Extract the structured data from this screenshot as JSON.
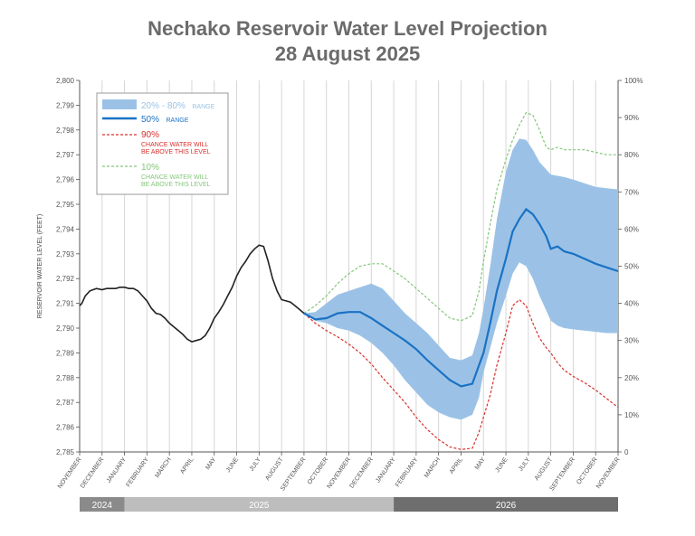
{
  "title_line1": "Nechako Reservoir Water Level Projection",
  "title_line2": "28 August 2025",
  "chart_data": {
    "type": "line",
    "ylabel": "RESERVOIR WATER LEVEL (FEET)",
    "ylim": [
      2785,
      2800
    ],
    "y_ticks": [
      "2,785",
      "2,786",
      "2,787",
      "2,788",
      "2,789",
      "2,790",
      "2,791",
      "2,792",
      "2,793",
      "2,794",
      "2,795",
      "2,796",
      "2,797",
      "2,798",
      "2,799",
      "2,800"
    ],
    "y2_ticks": [
      "0",
      "10%",
      "20%",
      "30%",
      "40%",
      "50%",
      "60%",
      "70%",
      "80%",
      "90%",
      "100%"
    ],
    "x_ticks": [
      "NOVEMBER",
      "DECEMBER",
      "JANUARY",
      "FEBRUARY",
      "MARCH",
      "APRIL",
      "MAY",
      "JUNE",
      "JULY",
      "AUGUST",
      "SEPTEMBER",
      "OCTOBER",
      "NOVEMBER",
      "DECEMBER",
      "JANUARY",
      "FEBRUARY",
      "MARCH",
      "APRIL",
      "MAY",
      "JUNE",
      "JULY",
      "AUGUST",
      "SEPTEMBER",
      "OCTOBER",
      "NOVEMBER"
    ],
    "years": [
      {
        "label": "2024",
        "start": 0,
        "end": 2,
        "color": "#8a8a8a"
      },
      {
        "label": "2025",
        "start": 2,
        "end": 14,
        "color": "#bdbdbd"
      },
      {
        "label": "2026",
        "start": 14,
        "end": 24,
        "color": "#6e6e6e"
      }
    ],
    "colors": {
      "historical": "#222222",
      "median": "#1a72c4",
      "band": "#9bc2e6",
      "p90": "#d9302c",
      "p10": "#84c77a"
    },
    "historical": {
      "x": [
        0,
        0.1,
        0.25,
        0.45,
        0.6,
        0.75,
        1.0,
        1.2,
        1.4,
        1.6,
        1.8,
        2.0,
        2.2,
        2.4,
        2.6,
        2.8,
        3.0,
        3.2,
        3.4,
        3.6,
        3.8,
        4.0,
        4.2,
        4.4,
        4.6,
        4.8,
        5.0,
        5.2,
        5.4,
        5.6,
        5.8,
        6.0,
        6.2,
        6.4,
        6.6,
        6.8,
        7.0,
        7.2,
        7.4,
        7.6,
        7.8,
        8.0,
        8.2,
        8.4,
        8.6,
        8.8,
        9.0,
        9.2,
        9.4,
        9.6,
        9.8,
        10.0
      ],
      "y": [
        2790.9,
        2791.0,
        2791.3,
        2791.5,
        2791.55,
        2791.6,
        2791.55,
        2791.6,
        2791.6,
        2791.6,
        2791.65,
        2791.65,
        2791.6,
        2791.6,
        2791.5,
        2791.3,
        2791.1,
        2790.8,
        2790.6,
        2790.55,
        2790.4,
        2790.2,
        2790.05,
        2789.9,
        2789.75,
        2789.55,
        2789.45,
        2789.5,
        2789.55,
        2789.7,
        2790.0,
        2790.4,
        2790.65,
        2790.95,
        2791.3,
        2791.65,
        2792.1,
        2792.45,
        2792.7,
        2793.0,
        2793.2,
        2793.35,
        2793.3,
        2792.7,
        2792.0,
        2791.5,
        2791.15,
        2791.1,
        2791.05,
        2790.9,
        2790.75,
        2790.6
      ]
    },
    "forecast_x": [
      10.0,
      10.5,
      11.0,
      11.5,
      12.0,
      12.5,
      13.0,
      13.5,
      14.0,
      14.5,
      15.0,
      15.5,
      16.0,
      16.5,
      17.0,
      17.5,
      17.8,
      18.0,
      18.3,
      18.6,
      19.0,
      19.3,
      19.6,
      19.9,
      20.2,
      20.5,
      20.8,
      21.0,
      21.3,
      21.6,
      22.0,
      22.5,
      23.0,
      23.5,
      24.0
    ],
    "series": [
      {
        "name": "50% RANGE",
        "y": [
          2790.6,
          2790.35,
          2790.4,
          2790.6,
          2790.65,
          2790.65,
          2790.4,
          2790.1,
          2789.8,
          2789.5,
          2789.15,
          2788.7,
          2788.3,
          2787.9,
          2787.65,
          2787.75,
          2788.5,
          2789.0,
          2790.2,
          2791.5,
          2792.8,
          2793.9,
          2794.4,
          2794.8,
          2794.6,
          2794.2,
          2793.7,
          2793.2,
          2793.3,
          2793.1,
          2793.0,
          2792.8,
          2792.6,
          2792.45,
          2792.3
        ]
      },
      {
        "name": "20% - 80% RANGE upper",
        "y": [
          2790.6,
          2790.65,
          2791.0,
          2791.35,
          2791.5,
          2791.65,
          2791.8,
          2791.6,
          2791.1,
          2790.6,
          2790.2,
          2789.8,
          2789.3,
          2788.8,
          2788.7,
          2788.9,
          2789.8,
          2790.8,
          2792.5,
          2794.4,
          2796.3,
          2797.2,
          2797.65,
          2797.6,
          2797.2,
          2796.7,
          2796.4,
          2796.2,
          2796.15,
          2796.1,
          2796.0,
          2795.85,
          2795.7,
          2795.65,
          2795.6
        ]
      },
      {
        "name": "20% - 80% RANGE lower",
        "y": [
          2790.6,
          2790.3,
          2790.2,
          2790.0,
          2789.9,
          2789.7,
          2789.4,
          2789.0,
          2788.5,
          2787.9,
          2787.4,
          2786.9,
          2786.6,
          2786.4,
          2786.3,
          2786.5,
          2787.2,
          2788.2,
          2789.2,
          2790.2,
          2791.3,
          2792.2,
          2792.65,
          2792.5,
          2792.0,
          2791.3,
          2790.7,
          2790.3,
          2790.1,
          2790.0,
          2789.95,
          2789.9,
          2789.85,
          2789.8,
          2789.8
        ]
      },
      {
        "name": "90%",
        "y": [
          2790.6,
          2790.2,
          2789.9,
          2789.65,
          2789.35,
          2789.0,
          2788.55,
          2788.0,
          2787.5,
          2787.0,
          2786.4,
          2785.9,
          2785.5,
          2785.2,
          2785.1,
          2785.15,
          2785.8,
          2786.4,
          2787.3,
          2788.5,
          2789.8,
          2790.9,
          2791.15,
          2790.9,
          2790.2,
          2789.6,
          2789.2,
          2789.0,
          2788.6,
          2788.3,
          2788.05,
          2787.8,
          2787.5,
          2787.15,
          2786.8
        ]
      },
      {
        "name": "10%",
        "y": [
          2790.6,
          2790.9,
          2791.3,
          2791.8,
          2792.2,
          2792.5,
          2792.6,
          2792.6,
          2792.3,
          2792.0,
          2791.6,
          2791.2,
          2790.8,
          2790.4,
          2790.3,
          2790.5,
          2791.5,
          2792.7,
          2794.2,
          2795.6,
          2796.8,
          2797.6,
          2798.2,
          2798.7,
          2798.6,
          2798.0,
          2797.3,
          2797.2,
          2797.3,
          2797.2,
          2797.2,
          2797.2,
          2797.1,
          2797.0,
          2797.0
        ]
      }
    ],
    "legend": {
      "band_label": "20% - 80%",
      "band_suffix": "RANGE",
      "median_label": "50%",
      "median_suffix": "RANGE",
      "p90_label": "90%",
      "p90_line1": "CHANCE WATER WILL",
      "p90_line2": "BE ABOVE THIS LEVEL",
      "p10_label": "10%",
      "p10_line1": "CHANCE WATER WILL",
      "p10_line2": "BE ABOVE THIS LEVEL"
    }
  }
}
